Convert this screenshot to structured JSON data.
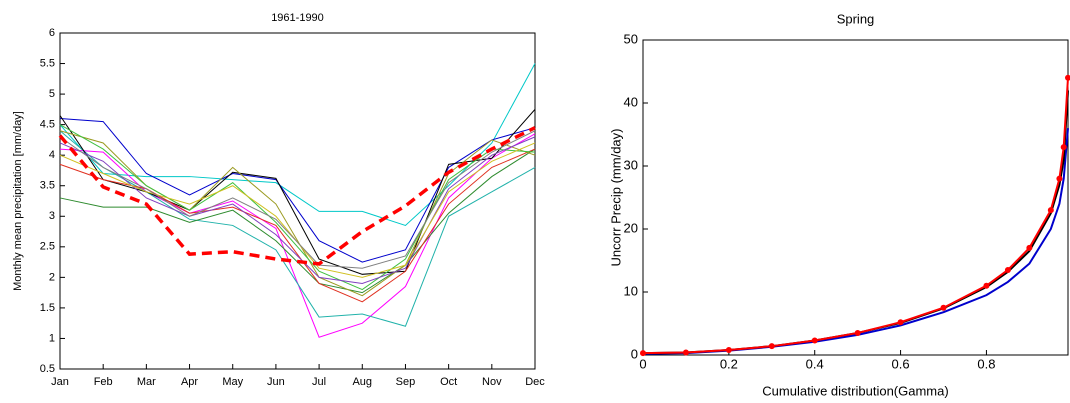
{
  "chart_data": [
    {
      "type": "line",
      "title": "1961-1990",
      "ylabel": "Monthly mean precipitation [mm/day]",
      "categories": [
        "Jan",
        "Feb",
        "Mar",
        "Apr",
        "May",
        "Jun",
        "Jul",
        "Aug",
        "Sep",
        "Oct",
        "Nov",
        "Dec"
      ],
      "ylim": [
        0.5,
        6
      ],
      "yticks": [
        0.5,
        1,
        1.5,
        2,
        2.5,
        3,
        3.5,
        4,
        4.5,
        5,
        5.5,
        6
      ],
      "series": [
        {
          "color": "#00c8c8",
          "values": [
            4.5,
            3.7,
            3.65,
            3.65,
            3.6,
            3.55,
            3.08,
            3.08,
            2.85,
            3.5,
            4.2,
            5.5
          ]
        },
        {
          "color": "#ff00ff",
          "values": [
            4.1,
            4.05,
            3.4,
            3.05,
            3.25,
            2.8,
            1.02,
            1.25,
            1.85,
            3.3,
            3.95,
            4.35
          ]
        },
        {
          "color": "#20b2aa",
          "values": [
            4.4,
            3.8,
            3.4,
            2.95,
            2.85,
            2.45,
            1.35,
            1.4,
            1.2,
            3.0,
            3.4,
            3.8
          ]
        },
        {
          "color": "#2e8b2e",
          "values": [
            3.3,
            3.15,
            3.15,
            2.9,
            3.1,
            2.6,
            1.9,
            1.75,
            2.2,
            3.05,
            3.65,
            4.1
          ]
        },
        {
          "color": "#0000cc",
          "values": [
            4.6,
            4.55,
            3.7,
            3.35,
            3.7,
            3.6,
            2.6,
            2.25,
            2.45,
            3.8,
            4.25,
            4.45
          ]
        },
        {
          "color": "#000000",
          "values": [
            4.65,
            3.6,
            3.4,
            3.1,
            3.72,
            3.62,
            2.3,
            2.05,
            2.1,
            3.85,
            3.95,
            4.75
          ]
        },
        {
          "color": "#e03020",
          "values": [
            3.85,
            3.6,
            3.45,
            3.05,
            3.15,
            2.85,
            1.9,
            1.6,
            2.1,
            3.2,
            3.8,
            4.1
          ]
        },
        {
          "color": "#9a9a20",
          "values": [
            4.4,
            4.2,
            3.5,
            3.1,
            3.8,
            3.2,
            2.0,
            1.7,
            2.2,
            3.7,
            4.25,
            4.0
          ]
        },
        {
          "color": "#40c040",
          "values": [
            4.5,
            4.1,
            3.5,
            3.1,
            3.55,
            2.9,
            2.1,
            1.8,
            2.3,
            3.6,
            4.1,
            4.05
          ]
        },
        {
          "color": "#8040c0",
          "values": [
            4.2,
            3.9,
            3.3,
            3.0,
            3.2,
            2.7,
            2.0,
            1.9,
            2.15,
            3.45,
            4.0,
            4.3
          ]
        },
        {
          "color": "#d0c020",
          "values": [
            4.0,
            3.7,
            3.4,
            3.2,
            3.5,
            3.0,
            2.15,
            2.0,
            2.2,
            3.4,
            3.9,
            4.2
          ]
        },
        {
          "color": "#808080",
          "values": [
            4.3,
            3.8,
            3.45,
            3.0,
            3.3,
            2.95,
            2.2,
            2.15,
            2.35,
            3.55,
            4.05,
            4.4
          ]
        },
        {
          "color": "#ff0000",
          "dashed": true,
          "values": [
            4.32,
            3.48,
            3.2,
            2.38,
            2.42,
            2.3,
            2.22,
            2.75,
            3.17,
            3.72,
            4.1,
            4.45
          ]
        }
      ]
    },
    {
      "type": "line",
      "title": "Spring",
      "xlabel": "Cumulative distribution(Gamma)",
      "ylabel": "Uncorr Precip (mm/day)",
      "x": [
        0,
        0.1,
        0.2,
        0.3,
        0.4,
        0.5,
        0.6,
        0.7,
        0.8,
        0.85,
        0.9,
        0.95,
        0.97,
        0.98,
        0.99
      ],
      "xlim": [
        0,
        0.99
      ],
      "xticks": [
        0,
        0.2,
        0.4,
        0.6,
        0.8
      ],
      "ylim": [
        0,
        50
      ],
      "yticks": [
        0,
        10,
        20,
        30,
        40,
        50
      ],
      "series": [
        {
          "color": "#0000cc",
          "values": [
            0.2,
            0.3,
            0.7,
            1.3,
            2.1,
            3.2,
            4.7,
            6.8,
            9.5,
            11.6,
            14.5,
            20,
            24,
            28,
            36
          ]
        },
        {
          "color": "#000000",
          "values": [
            0.3,
            0.4,
            0.8,
            1.4,
            2.3,
            3.5,
            5.1,
            7.4,
            10.8,
            13.2,
            16.5,
            22.5,
            27,
            31,
            42
          ]
        },
        {
          "color": "#ff0000",
          "marker": true,
          "values": [
            0.3,
            0.4,
            0.8,
            1.4,
            2.3,
            3.5,
            5.2,
            7.5,
            11,
            13.5,
            17,
            23,
            28,
            33,
            44
          ]
        }
      ]
    }
  ]
}
